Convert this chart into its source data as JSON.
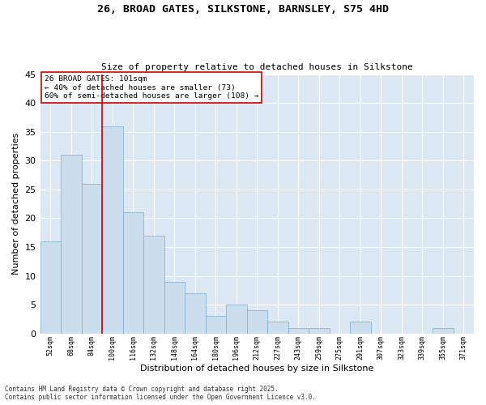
{
  "title_line1": "26, BROAD GATES, SILKSTONE, BARNSLEY, S75 4HD",
  "title_line2": "Size of property relative to detached houses in Silkstone",
  "xlabel": "Distribution of detached houses by size in Silkstone",
  "ylabel": "Number of detached properties",
  "bar_color": "#ccdded",
  "bar_edge_color": "#7aabcc",
  "background_color": "#dde8f5",
  "grid_color": "#ffffff",
  "annotation_box_color": "#cc0000",
  "vline_color": "#cc0000",
  "categories": [
    "52sqm",
    "68sqm",
    "84sqm",
    "100sqm",
    "116sqm",
    "132sqm",
    "148sqm",
    "164sqm",
    "180sqm",
    "196sqm",
    "212sqm",
    "227sqm",
    "243sqm",
    "259sqm",
    "275sqm",
    "291sqm",
    "307sqm",
    "323sqm",
    "339sqm",
    "355sqm",
    "371sqm"
  ],
  "values": [
    16,
    31,
    26,
    36,
    21,
    17,
    9,
    7,
    3,
    5,
    4,
    2,
    1,
    1,
    0,
    2,
    0,
    0,
    0,
    1,
    0
  ],
  "ylim": [
    0,
    45
  ],
  "yticks": [
    0,
    5,
    10,
    15,
    20,
    25,
    30,
    35,
    40,
    45
  ],
  "vline_index": 3,
  "annotation_text": "26 BROAD GATES: 101sqm\n← 40% of detached houses are smaller (73)\n60% of semi-detached houses are larger (108) →",
  "footer_line1": "Contains HM Land Registry data © Crown copyright and database right 2025.",
  "footer_line2": "Contains public sector information licensed under the Open Government Licence v3.0.",
  "figsize": [
    6.0,
    5.0
  ],
  "dpi": 100
}
